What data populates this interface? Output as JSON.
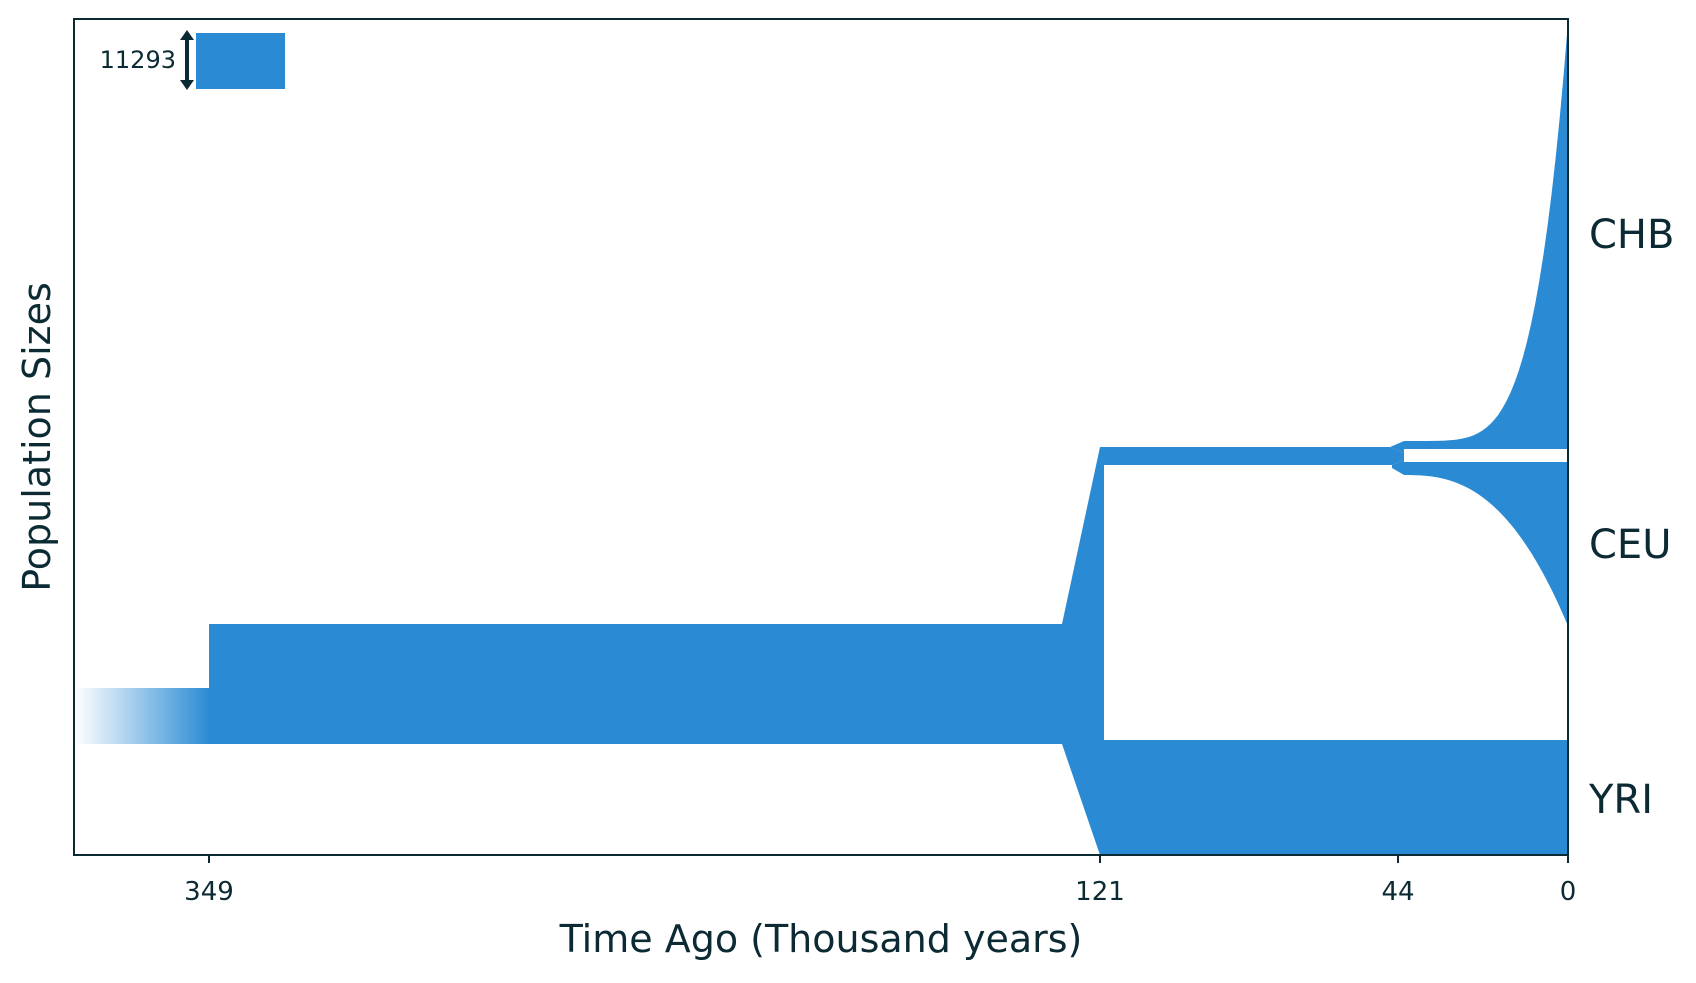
{
  "chart_data": {
    "type": "area",
    "title": "",
    "xlabel": "Time Ago (Thousand years)",
    "ylabel": "Population Sizes",
    "x_ticks": [
      349,
      121,
      44,
      0
    ],
    "x_ticks_labels": [
      "349",
      "121",
      "44",
      "0"
    ],
    "xlim": [
      390,
      0
    ],
    "scale_bar": {
      "label": "11293",
      "value": 11293
    },
    "populations": [
      {
        "name": "YRI",
        "label": "YRI"
      },
      {
        "name": "CEU",
        "label": "CEU"
      },
      {
        "name": "CHB",
        "label": "CHB"
      }
    ],
    "events": [
      {
        "time": 349,
        "description": "ancestral size change"
      },
      {
        "time": 121,
        "description": "out-of-Africa split"
      },
      {
        "time": 44,
        "description": "CEU/CHB split"
      }
    ]
  },
  "colors": {
    "fill": "#2a8bd4",
    "axis": "#0b2a33",
    "background": "#ffffff"
  }
}
